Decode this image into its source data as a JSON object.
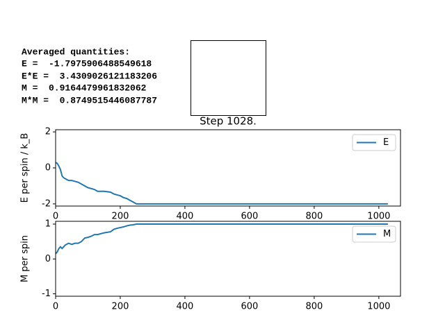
{
  "averages": {
    "title": "Averaged quantities:",
    "lines": [
      "E =  -1.7975906488549618",
      "E*E =  3.4309026121183206",
      "M =  0.9164479961832062",
      "M*M =  0.8749515446087787"
    ]
  },
  "lattice": {
    "title": "Step 1028."
  },
  "chart_data": [
    {
      "type": "line",
      "ylabel": "E per spin / k_B",
      "x": [
        0,
        5,
        10,
        15,
        20,
        25,
        30,
        40,
        50,
        60,
        70,
        80,
        90,
        100,
        110,
        120,
        130,
        150,
        170,
        180,
        190,
        200,
        210,
        220,
        230,
        240,
        250,
        400,
        600,
        800,
        1028
      ],
      "series": [
        {
          "name": "E",
          "color": "#1f77b4",
          "values": [
            0.3,
            0.25,
            0.1,
            -0.1,
            -0.45,
            -0.55,
            -0.6,
            -0.7,
            -0.7,
            -0.75,
            -0.8,
            -0.9,
            -1.0,
            -1.1,
            -1.15,
            -1.2,
            -1.3,
            -1.3,
            -1.35,
            -1.45,
            -1.5,
            -1.55,
            -1.65,
            -1.7,
            -1.8,
            -1.9,
            -2,
            -2,
            -2,
            -2,
            -2
          ]
        }
      ],
      "xlim": [
        0,
        1067
      ],
      "xticks": [
        0,
        200,
        400,
        600,
        800,
        1000
      ],
      "ylim": [
        -2.12,
        2.12
      ],
      "yticks": [
        -2,
        0,
        2
      ],
      "legend": "upper right"
    },
    {
      "type": "line",
      "ylabel": "M per spin",
      "x": [
        0,
        5,
        10,
        15,
        20,
        25,
        30,
        40,
        50,
        60,
        70,
        80,
        90,
        100,
        110,
        120,
        130,
        150,
        170,
        180,
        190,
        200,
        210,
        220,
        230,
        240,
        250,
        400,
        600,
        800,
        1028
      ],
      "series": [
        {
          "name": "M",
          "color": "#1f77b4",
          "values": [
            0.15,
            0.2,
            0.3,
            0.35,
            0.3,
            0.35,
            0.4,
            0.45,
            0.42,
            0.45,
            0.45,
            0.5,
            0.6,
            0.62,
            0.65,
            0.7,
            0.7,
            0.75,
            0.78,
            0.85,
            0.88,
            0.9,
            0.92,
            0.95,
            0.97,
            0.98,
            1,
            1,
            1,
            1,
            1
          ]
        }
      ],
      "xlim": [
        0,
        1067
      ],
      "xticks": [
        0,
        200,
        400,
        600,
        800,
        1000
      ],
      "ylim": [
        -1.07,
        1.08
      ],
      "yticks": [
        -1,
        0,
        1
      ],
      "legend": "upper right"
    }
  ]
}
